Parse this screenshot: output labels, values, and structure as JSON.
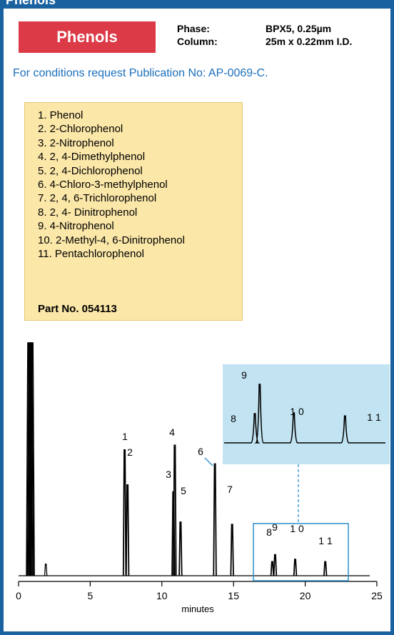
{
  "header": {
    "title": "Phenols"
  },
  "badge": {
    "label": "Phenols"
  },
  "specs": [
    {
      "key": "Phase:",
      "value": "BPX5, 0.25µm"
    },
    {
      "key": "Column:",
      "value": "25m x 0.22mm I.D."
    }
  ],
  "conditions": "For conditions request Publication No: AP-0069-C.",
  "compounds": [
    "1.  Phenol",
    "2.  2-Chlorophenol",
    "3.  2-Nitrophenol",
    "4.  2, 4-Dimethylphenol",
    "5.  2, 4-Dichlorophenol",
    "6.  4-Chloro-3-methylphenol",
    "7.  2, 4, 6-Trichlorophenol",
    "8.  2, 4- Dinitrophenol",
    "9.  4-Nitrophenol",
    "10. 2-Methyl-4, 6-Dinitrophenol",
    "11. Pentachlorophenol"
  ],
  "part_no": "Part No. 054113",
  "colors": {
    "brand_blue": "#1a61a0",
    "badge_red": "#dc3a47",
    "legend_bg": "#fbe7a8",
    "inset_bg": "#c2e4f2",
    "zoom_box": "#2a8fcf"
  },
  "chart_data": {
    "type": "line",
    "xlabel": "minutes",
    "xlim": [
      0,
      25
    ],
    "xticks": [
      0,
      5,
      10,
      15,
      20,
      25
    ],
    "ylim": [
      0,
      100
    ],
    "solvent_peak": {
      "x": 0.8,
      "height": 100
    },
    "peaks": [
      {
        "label": "1",
        "x": 7.4,
        "height": 54
      },
      {
        "label": "2",
        "x": 7.6,
        "height": 39
      },
      {
        "label": "3",
        "x": 10.8,
        "height": 36
      },
      {
        "label": "4",
        "x": 10.9,
        "height": 56
      },
      {
        "label": "5",
        "x": 11.3,
        "height": 23
      },
      {
        "label": "6",
        "x": 13.7,
        "height": 48
      },
      {
        "label": "7",
        "x": 14.9,
        "height": 22
      },
      {
        "label": "8",
        "x": 17.7,
        "height": 6
      },
      {
        "label": "9",
        "x": 17.9,
        "height": 9
      },
      {
        "label": "1 0",
        "x": 19.3,
        "height": 7
      },
      {
        "label": "1 1",
        "x": 21.4,
        "height": 6
      }
    ],
    "minor_peaks": [
      {
        "x": 1.9,
        "height": 5
      }
    ],
    "inset": {
      "xlim": [
        16.5,
        23
      ],
      "peaks": [
        {
          "label": "8",
          "x": 17.7,
          "height": 50
        },
        {
          "label": "9",
          "x": 17.9,
          "height": 100
        },
        {
          "label": "1 0",
          "x": 19.3,
          "height": 51
        },
        {
          "label": "1 1",
          "x": 21.4,
          "height": 46
        }
      ]
    }
  }
}
